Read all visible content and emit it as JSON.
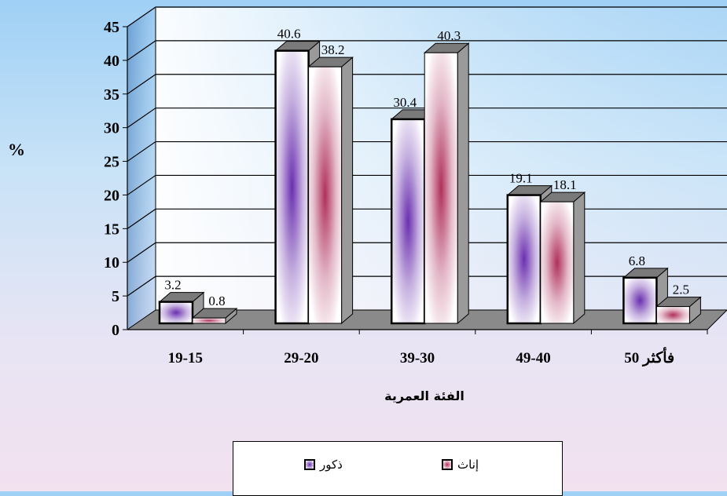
{
  "chart_data": {
    "type": "bar",
    "ylabel": "%",
    "xlabel": "الفئة العمرية",
    "ylim": [
      0,
      45
    ],
    "yticks": [
      "0",
      "5",
      "10",
      "15",
      "20",
      "25",
      "30",
      "35",
      "40",
      "45"
    ],
    "categories": [
      "19-15",
      "29-20",
      "39-30",
      "49-40",
      "50 فأكثر"
    ],
    "series": [
      {
        "name": "ذكور",
        "values": [
          3.2,
          40.6,
          30.4,
          19.1,
          6.8
        ],
        "labels": [
          "3.2",
          "40.6",
          "30.4",
          "19.1",
          "6.8"
        ],
        "color": "#6a2fb0"
      },
      {
        "name": "إناث",
        "values": [
          0.8,
          38.2,
          40.3,
          18.1,
          2.5
        ],
        "labels": [
          "0.8",
          "38.2",
          "40.3",
          "18.1",
          "2.5"
        ],
        "color": "#b0305a"
      }
    ],
    "grid": true,
    "legend": "bottom"
  }
}
